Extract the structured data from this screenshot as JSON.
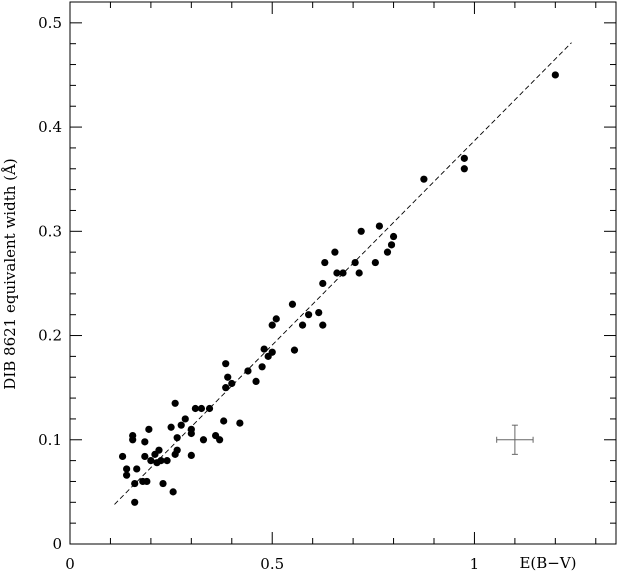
{
  "chart_data": {
    "type": "scatter",
    "title": "",
    "xlabel": "E(B−V)",
    "ylabel": "DIB 8621 equivalent width (Å)",
    "xlim": [
      0,
      1.35
    ],
    "ylim": [
      0,
      0.52
    ],
    "x_ticks": [
      {
        "value": 0,
        "label": "0"
      },
      {
        "value": 0.5,
        "label": "0.5"
      },
      {
        "value": 1,
        "label": "1"
      }
    ],
    "y_ticks": [
      {
        "value": 0,
        "label": "0"
      },
      {
        "value": 0.1,
        "label": "0.1"
      },
      {
        "value": 0.2,
        "label": "0.2"
      },
      {
        "value": 0.3,
        "label": "0.3"
      },
      {
        "value": 0.4,
        "label": "0.4"
      },
      {
        "value": 0.5,
        "label": "0.5"
      }
    ],
    "grid": false,
    "legend": "none",
    "fit_line": {
      "style": "dashed",
      "x_range": [
        0.11,
        1.24
      ],
      "y_range": [
        0.038,
        0.481
      ]
    },
    "typical_error": {
      "x": 1.1,
      "y": 0.1,
      "x_err": 0.045,
      "y_err": 0.014
    },
    "series": [
      {
        "points": [
          [
            0.13,
            0.084
          ],
          [
            0.14,
            0.072
          ],
          [
            0.14,
            0.066
          ],
          [
            0.155,
            0.1
          ],
          [
            0.155,
            0.104
          ],
          [
            0.16,
            0.04
          ],
          [
            0.16,
            0.058
          ],
          [
            0.165,
            0.072
          ],
          [
            0.18,
            0.06
          ],
          [
            0.185,
            0.098
          ],
          [
            0.185,
            0.084
          ],
          [
            0.19,
            0.06
          ],
          [
            0.195,
            0.11
          ],
          [
            0.2,
            0.08
          ],
          [
            0.21,
            0.086
          ],
          [
            0.215,
            0.078
          ],
          [
            0.22,
            0.09
          ],
          [
            0.225,
            0.08
          ],
          [
            0.23,
            0.058
          ],
          [
            0.24,
            0.08
          ],
          [
            0.25,
            0.112
          ],
          [
            0.255,
            0.05
          ],
          [
            0.26,
            0.135
          ],
          [
            0.26,
            0.086
          ],
          [
            0.265,
            0.09
          ],
          [
            0.265,
            0.102
          ],
          [
            0.275,
            0.114
          ],
          [
            0.285,
            0.12
          ],
          [
            0.3,
            0.085
          ],
          [
            0.3,
            0.106
          ],
          [
            0.3,
            0.11
          ],
          [
            0.31,
            0.13
          ],
          [
            0.325,
            0.13
          ],
          [
            0.33,
            0.1
          ],
          [
            0.345,
            0.13
          ],
          [
            0.36,
            0.104
          ],
          [
            0.37,
            0.1
          ],
          [
            0.38,
            0.118
          ],
          [
            0.385,
            0.15
          ],
          [
            0.385,
            0.173
          ],
          [
            0.39,
            0.16
          ],
          [
            0.4,
            0.154
          ],
          [
            0.42,
            0.116
          ],
          [
            0.44,
            0.166
          ],
          [
            0.46,
            0.156
          ],
          [
            0.475,
            0.17
          ],
          [
            0.48,
            0.187
          ],
          [
            0.49,
            0.18
          ],
          [
            0.5,
            0.184
          ],
          [
            0.5,
            0.21
          ],
          [
            0.51,
            0.216
          ],
          [
            0.55,
            0.23
          ],
          [
            0.555,
            0.186
          ],
          [
            0.575,
            0.21
          ],
          [
            0.59,
            0.22
          ],
          [
            0.615,
            0.222
          ],
          [
            0.625,
            0.21
          ],
          [
            0.625,
            0.25
          ],
          [
            0.63,
            0.27
          ],
          [
            0.655,
            0.28
          ],
          [
            0.66,
            0.26
          ],
          [
            0.675,
            0.26
          ],
          [
            0.705,
            0.27
          ],
          [
            0.715,
            0.26
          ],
          [
            0.72,
            0.3
          ],
          [
            0.755,
            0.27
          ],
          [
            0.765,
            0.305
          ],
          [
            0.785,
            0.28
          ],
          [
            0.795,
            0.287
          ],
          [
            0.8,
            0.295
          ],
          [
            0.875,
            0.35
          ],
          [
            0.975,
            0.37
          ],
          [
            0.975,
            0.36
          ],
          [
            1.2,
            0.45
          ]
        ]
      }
    ]
  }
}
